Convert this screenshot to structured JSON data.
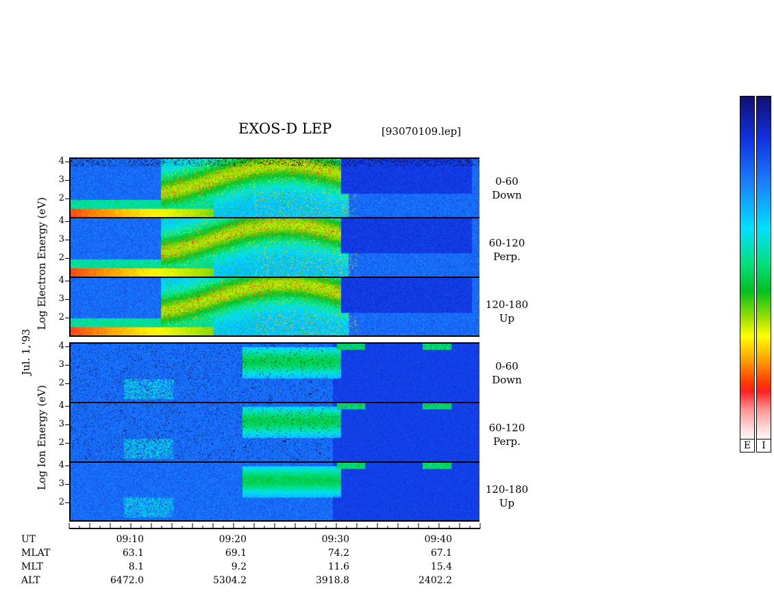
{
  "header": {
    "title": "EXOS-D LEP",
    "file": "[93070109.lep]"
  },
  "date_label": "Jul. 1,'93",
  "electron_axis_label": "Log Electron Energy (eV)",
  "ion_axis_label": "Log Ion Energy (eV)",
  "panels": [
    {
      "species": "electron",
      "pitch_angle": "0-60",
      "direction": "Down"
    },
    {
      "species": "electron",
      "pitch_angle": "60-120",
      "direction": "Perp."
    },
    {
      "species": "electron",
      "pitch_angle": "120-180",
      "direction": "Up"
    },
    {
      "species": "ion",
      "pitch_angle": "0-60",
      "direction": "Down"
    },
    {
      "species": "ion",
      "pitch_angle": "60-120",
      "direction": "Perp."
    },
    {
      "species": "ion",
      "pitch_angle": "120-180",
      "direction": "Up"
    }
  ],
  "y_ticks": [
    "4",
    "3",
    "2"
  ],
  "orbit": {
    "row_labels": [
      "UT",
      "MLAT",
      "MLT",
      "ALT"
    ],
    "columns": [
      {
        "UT": "09:10",
        "MLAT": "63.1",
        "MLT": "8.1",
        "ALT": "6472.0"
      },
      {
        "UT": "09:20",
        "MLAT": "69.1",
        "MLT": "9.2",
        "ALT": "5304.2"
      },
      {
        "UT": "09:30",
        "MLAT": "74.2",
        "MLT": "11.6",
        "ALT": "3918.8"
      },
      {
        "UT": "09:40",
        "MLAT": "67.1",
        "MLT": "15.4",
        "ALT": "2402.2"
      }
    ]
  },
  "colorbars": {
    "electron": "E",
    "ion": "I"
  },
  "chart_data": {
    "type": "heatmap",
    "title": "EXOS-D LEP",
    "xlabel": "UT",
    "ylabel": "Log Energy (eV)",
    "x_range": [
      "09:05",
      "09:44"
    ],
    "ylim": [
      1,
      4
    ],
    "series": [
      {
        "name": "Electron 0-60 Down"
      },
      {
        "name": "Electron 60-120 Perp."
      },
      {
        "name": "Electron 120-180 Up"
      },
      {
        "name": "Ion 0-60 Down"
      },
      {
        "name": "Ion 60-120 Perp."
      },
      {
        "name": "Ion 120-180 Up"
      }
    ],
    "colors": [
      "#101070",
      "#1030e0",
      "#00e0ff",
      "#00c020",
      "#ffff00",
      "#ff2020",
      "#ffffff"
    ]
  }
}
